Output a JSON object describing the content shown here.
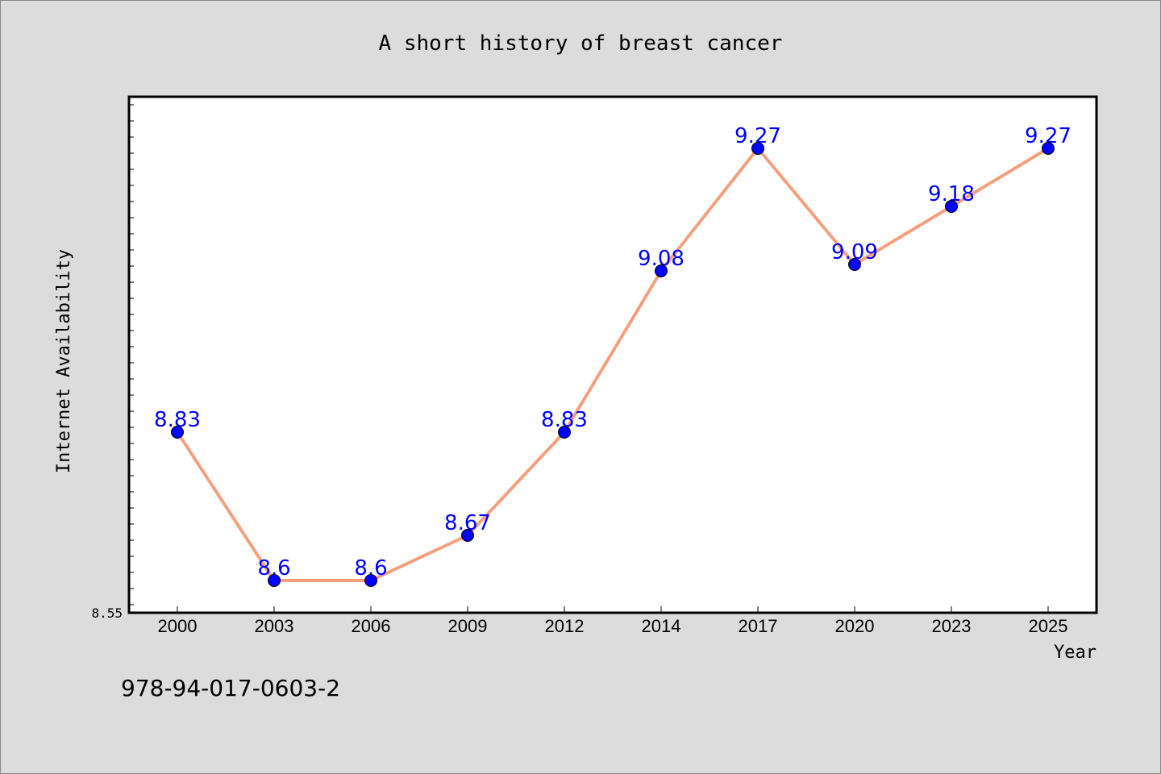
{
  "chart_data": {
    "type": "line",
    "title": "A short history of breast cancer",
    "xlabel": "Year",
    "ylabel": "Internet Availability",
    "categories": [
      "2000",
      "2003",
      "2006",
      "2009",
      "2012",
      "2014",
      "2017",
      "2020",
      "2023",
      "2025"
    ],
    "series": [
      {
        "values": [
          8.83,
          8.6,
          8.6,
          8.67,
          8.83,
          9.08,
          9.27,
          9.09,
          9.18,
          9.27
        ]
      }
    ],
    "data_labels": [
      "8.83",
      "8.6",
      "8.6",
      "8.67",
      "8.83",
      "9.08",
      "9.27",
      "9.09",
      "9.18",
      "9.27"
    ],
    "ylim": [
      8.55,
      9.35
    ],
    "y_tick_label": "8.55",
    "grid": false,
    "line_color": "#f4a07e",
    "marker_color": "#0000ff",
    "label_color": "#0000ff"
  },
  "footer_text": "978-94-017-0603-2"
}
